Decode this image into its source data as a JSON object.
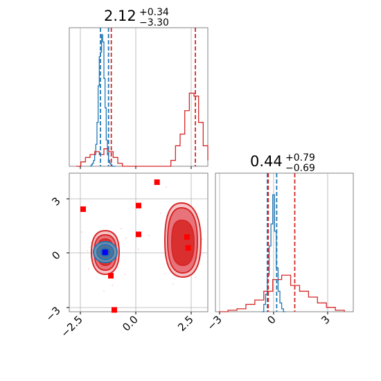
{
  "colors": {
    "blue": "#1f77b4",
    "red": "#d62728",
    "red_fill_dark": "#d9302f",
    "red_fill_mid": "#e8737a",
    "red_fill_light": "#f6c3c6",
    "blue_fill": "#7f8fa6",
    "marker_red": "#ff0000",
    "marker_blue": "#0000ff",
    "grid": "#b0b0b0",
    "frame": "#808080"
  },
  "chart_data": [
    {
      "type": "histogram",
      "panel": "marginal-x",
      "title": {
        "value": "2.12",
        "plus": "+0.34",
        "minus": "−3.30"
      },
      "x_range": [
        -3.0,
        3.0
      ],
      "series": [
        {
          "color": "blue",
          "bins": [
            -2.1,
            -2.05,
            -2.0,
            -1.95,
            -1.9,
            -1.85,
            -1.8,
            -1.75,
            -1.7,
            -1.65,
            -1.6,
            -1.55,
            -1.5,
            -1.45,
            -1.4,
            -1.35,
            -1.3,
            -1.25,
            -1.2,
            -1.15,
            -1.1,
            -1.05,
            -1.0
          ],
          "counts": [
            0.0,
            0.01,
            0.02,
            0.04,
            0.08,
            0.15,
            0.3,
            0.55,
            0.75,
            0.78,
            0.9,
            0.85,
            0.6,
            0.4,
            0.18,
            0.08,
            0.04,
            0.02,
            0.01,
            0.0,
            0.0,
            0.0
          ]
        },
        {
          "color": "red",
          "bins": [
            -2.7,
            -2.5,
            -2.3,
            -2.1,
            -1.9,
            -1.7,
            -1.5,
            -1.3,
            -1.1,
            -0.9,
            -0.7,
            1.4,
            1.6,
            1.8,
            2.0,
            2.2,
            2.4,
            2.6,
            2.8,
            3.0
          ],
          "counts": [
            0.0,
            0.03,
            0.06,
            0.08,
            0.1,
            0.08,
            0.12,
            0.1,
            0.06,
            0.02,
            0.0,
            0.04,
            0.14,
            0.22,
            0.38,
            0.5,
            0.48,
            0.3,
            0.14,
            0.04
          ]
        }
      ],
      "vlines": [
        {
          "color": "blue",
          "x": -1.65
        },
        {
          "color": "blue",
          "x": -1.3
        },
        {
          "color": "red",
          "x": -1.18
        },
        {
          "color": "red",
          "x": 2.46
        }
      ]
    },
    {
      "type": "contour-scatter",
      "panel": "joint",
      "x_range": [
        -3.0,
        3.0
      ],
      "y_range": [
        -3.2,
        4.5
      ],
      "x_ticks": [
        -2.5,
        0.0,
        2.5
      ],
      "x_tick_labels": [
        "−2.5",
        "0.0",
        "2.5"
      ],
      "y_ticks": [
        -3,
        0,
        3
      ],
      "y_tick_labels": [
        "−3",
        "0",
        "3"
      ],
      "red_markers": [
        {
          "x": -2.4,
          "y": 2.5
        },
        {
          "x": 0.0,
          "y": 2.7
        },
        {
          "x": 0.8,
          "y": 4.0
        },
        {
          "x": 0.0,
          "y": 1.1
        },
        {
          "x": 2.1,
          "y": 0.95
        },
        {
          "x": 2.15,
          "y": 0.35
        },
        {
          "x": -1.2,
          "y": -1.2
        },
        {
          "x": -1.05,
          "y": -3.1
        }
      ],
      "blue_markers": [
        {
          "x": -1.45,
          "y": 0.1
        }
      ]
    },
    {
      "type": "histogram",
      "panel": "marginal-y",
      "title": {
        "value": "0.44",
        "plus": "+0.79",
        "minus": "−0.69"
      },
      "x_range": [
        -3.2,
        4.5
      ],
      "x_ticks": [
        -3,
        0,
        3
      ],
      "x_tick_labels": [
        "−3",
        "0",
        "3"
      ],
      "series": [
        {
          "color": "blue",
          "bins": [
            -0.6,
            -0.5,
            -0.4,
            -0.3,
            -0.2,
            -0.1,
            0.0,
            0.1,
            0.2,
            0.3,
            0.4,
            0.5,
            0.6,
            0.7
          ],
          "counts": [
            0.0,
            0.05,
            0.12,
            0.25,
            0.45,
            0.6,
            0.8,
            0.55,
            0.3,
            0.14,
            0.06,
            0.02,
            0.0
          ]
        },
        {
          "color": "red",
          "bins": [
            -3.0,
            -2.5,
            -2.0,
            -1.5,
            -1.0,
            -0.5,
            0.0,
            0.5,
            1.0,
            1.5,
            2.0,
            2.5,
            3.0,
            3.5,
            4.0
          ],
          "counts": [
            0.0,
            0.01,
            0.02,
            0.05,
            0.08,
            0.14,
            0.22,
            0.25,
            0.18,
            0.14,
            0.1,
            0.06,
            0.03,
            0.01
          ]
        }
      ],
      "vlines": [
        {
          "color": "blue",
          "x": -0.3
        },
        {
          "color": "blue",
          "x": 0.22
        },
        {
          "color": "red",
          "x": -0.25
        },
        {
          "color": "red",
          "x": 1.23
        }
      ]
    }
  ]
}
